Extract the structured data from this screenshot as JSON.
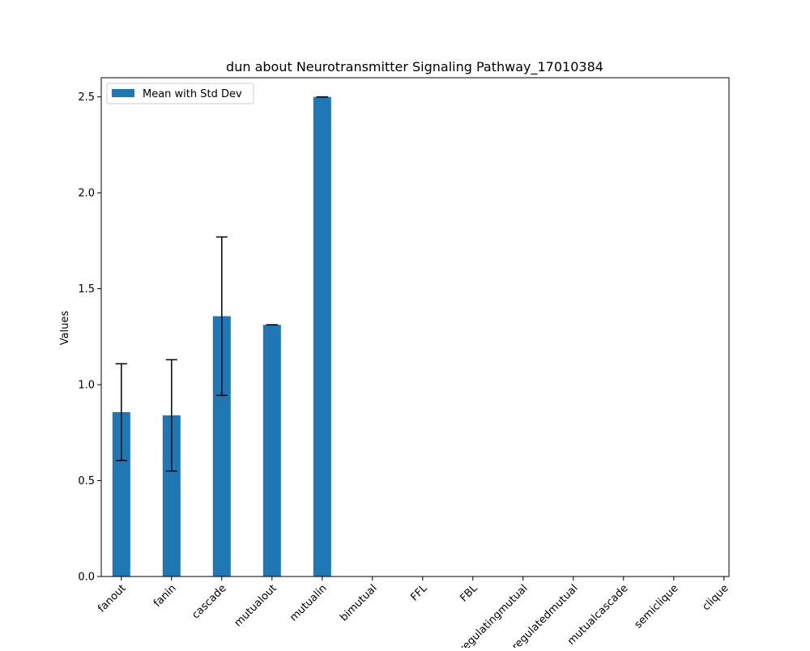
{
  "chart_data": {
    "type": "bar",
    "title": "dun about Neurotransmitter Signaling Pathway_17010384",
    "xlabel": "",
    "ylabel": "Values",
    "ylim": [
      0,
      2.6
    ],
    "yticks": [
      "0.0",
      "0.5",
      "1.0",
      "1.5",
      "2.0",
      "2.5"
    ],
    "categories": [
      "fanout",
      "fanin",
      "cascade",
      "mutualout",
      "mutualin",
      "bimutual",
      "FFL",
      "FBL",
      "regulatingmutual",
      "regulatedmutual",
      "mutualcascade",
      "semiclique",
      "clique"
    ],
    "series": [
      {
        "name": "Mean with Std Dev",
        "values": [
          0.857,
          0.84,
          1.357,
          1.312,
          2.5,
          0,
          0,
          0,
          0,
          0,
          0,
          0,
          0
        ],
        "std": [
          0.252,
          0.29,
          0.413,
          0.0,
          0.0,
          0,
          0,
          0,
          0,
          0,
          0,
          0,
          0
        ],
        "color": "#1f77b4"
      }
    ],
    "errorbar_categories": [
      0,
      1,
      2,
      3,
      4
    ],
    "grid": false,
    "legend": "upper-left"
  }
}
